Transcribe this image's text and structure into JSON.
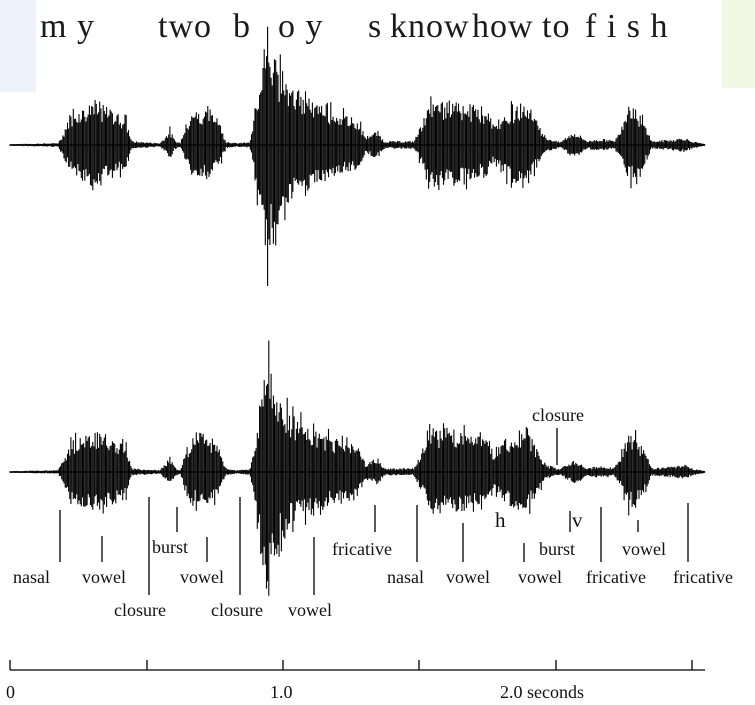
{
  "sentence": {
    "words": [
      "m y",
      "two",
      "b",
      "o y",
      "s",
      "know",
      "how",
      "to",
      "f i s h"
    ]
  },
  "segments": {
    "labels": [
      "nasal",
      "vowel",
      "closure",
      "burst",
      "vowel",
      "closure",
      "vowel",
      "fricative",
      "nasal",
      "vowel",
      "vowel",
      "burst",
      "fricative",
      "vowel",
      "fricative",
      "closure"
    ],
    "phones": [
      "h",
      "v"
    ]
  },
  "time_axis": {
    "ticks": [
      "0",
      "1.0",
      "2.0 seconds"
    ]
  },
  "colors": {
    "waveform": "#000000",
    "text": "#111111",
    "background": "#ffffff",
    "panel_tint": "#eef3fb",
    "accent_tint": "#f2f8e4"
  }
}
